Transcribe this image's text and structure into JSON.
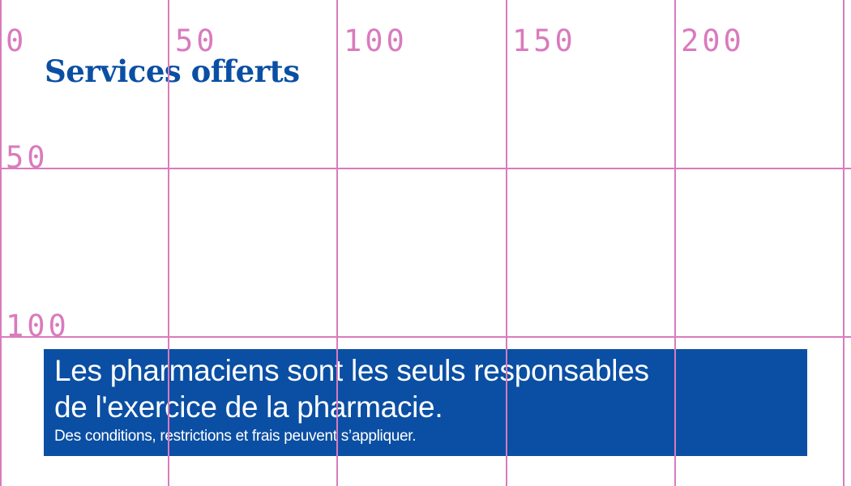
{
  "title": "Services offerts",
  "banner": {
    "line1": "Les pharmaciens sont les seuls responsables",
    "line2": "de l'exercice de la pharmacie.",
    "disclaimer": "Des conditions, restrictions et frais peuvent s’appliquer."
  },
  "grid_overlay": {
    "color": "#d97bbd",
    "x_labels": [
      "0",
      "50",
      "100",
      "150",
      "200"
    ],
    "y_labels": [
      "50",
      "100"
    ]
  },
  "colors": {
    "brand_blue": "#0a4fa3"
  }
}
